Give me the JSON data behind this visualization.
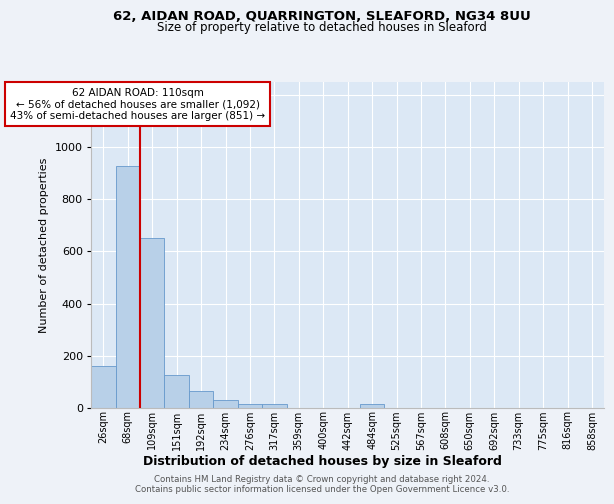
{
  "title1": "62, AIDAN ROAD, QUARRINGTON, SLEAFORD, NG34 8UU",
  "title2": "Size of property relative to detached houses in Sleaford",
  "xlabel": "Distribution of detached houses by size in Sleaford",
  "ylabel": "Number of detached properties",
  "categories": [
    "26sqm",
    "68sqm",
    "109sqm",
    "151sqm",
    "192sqm",
    "234sqm",
    "276sqm",
    "317sqm",
    "359sqm",
    "400sqm",
    "442sqm",
    "484sqm",
    "525sqm",
    "567sqm",
    "608sqm",
    "650sqm",
    "692sqm",
    "733sqm",
    "775sqm",
    "816sqm",
    "858sqm"
  ],
  "values": [
    160,
    930,
    650,
    125,
    62,
    30,
    12,
    12,
    0,
    0,
    0,
    15,
    0,
    0,
    0,
    0,
    0,
    0,
    0,
    0,
    0
  ],
  "bar_color": "#b8d0e8",
  "bar_edge_color": "#6699cc",
  "property_line_color": "#cc0000",
  "property_line_x": 2,
  "annotation_text": "62 AIDAN ROAD: 110sqm\n← 56% of detached houses are smaller (1,092)\n43% of semi-detached houses are larger (851) →",
  "annotation_box_color": "#cc0000",
  "ylim": [
    0,
    1250
  ],
  "yticks": [
    0,
    200,
    400,
    600,
    800,
    1000,
    1200
  ],
  "footer1": "Contains HM Land Registry data © Crown copyright and database right 2024.",
  "footer2": "Contains public sector information licensed under the Open Government Licence v3.0.",
  "bg_color": "#eef2f8",
  "plot_bg_color": "#dce8f5"
}
